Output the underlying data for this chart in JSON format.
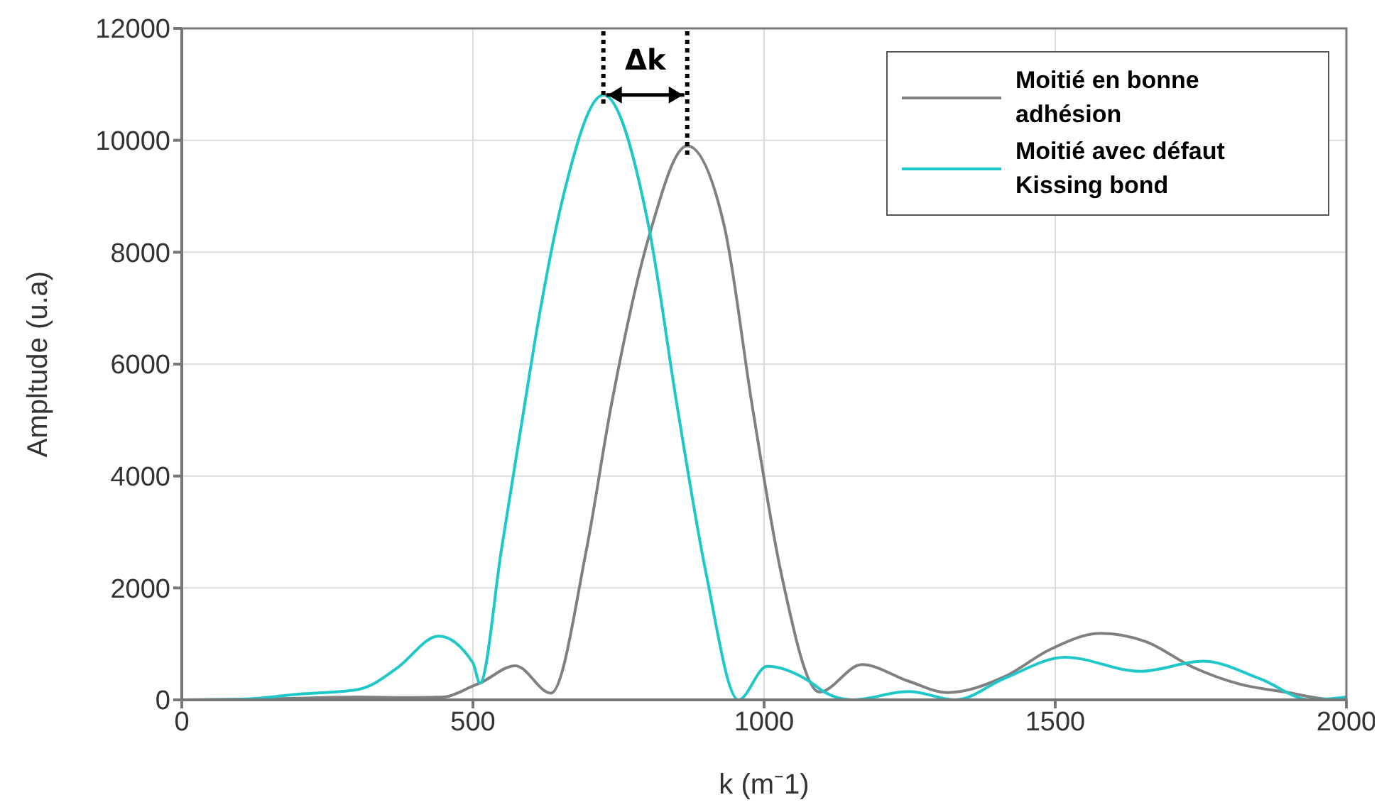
{
  "chart_data": {
    "type": "line",
    "xlabel": "k (m⁻1)",
    "ylabel": "Ampltude (u.a)",
    "xlim": [
      0,
      2000
    ],
    "xticks": [
      0,
      500,
      1000,
      1500,
      2000
    ],
    "ylim": [
      0,
      12000
    ],
    "yticks": [
      0,
      2000,
      4000,
      6000,
      8000,
      10000,
      12000
    ],
    "grid": true,
    "legend": "top right",
    "annotations": [
      "Δk"
    ],
    "series": [
      {
        "name": "Moitié en bonne adhésion",
        "color": "#808080",
        "x": [
          0,
          100,
          200,
          300,
          400,
          450,
          480,
          500,
          512,
          573,
          634,
          695,
          737,
          802,
          868,
          932,
          980,
          1029,
          1095,
          1168,
          1249,
          1315,
          1412,
          1493,
          1578,
          1656,
          1737,
          1817,
          1900,
          1960,
          2000
        ],
        "values": [
          0,
          10,
          30,
          50,
          40,
          50,
          150,
          250,
          300,
          610,
          120,
          2690,
          5230,
          8270,
          9900,
          8450,
          5230,
          2280,
          140,
          630,
          330,
          130,
          410,
          910,
          1190,
          1040,
          580,
          280,
          130,
          20,
          0
        ]
      },
      {
        "name": "Moitié avec défaut Kissing bond",
        "color": "#1fc8c8",
        "x": [
          0,
          100,
          200,
          300,
          322,
          371,
          441,
          500,
          512,
          549,
          583,
          615,
          656,
          724,
          802,
          851,
          900,
          956,
          1005,
          1078,
          1102,
          1151,
          1249,
          1329,
          1412,
          1517,
          1646,
          1754,
          1851,
          1939,
          2000
        ],
        "values": [
          0,
          10,
          100,
          180,
          250,
          580,
          1140,
          660,
          300,
          2690,
          4900,
          6930,
          9040,
          10810,
          8450,
          5230,
          2280,
          0,
          600,
          330,
          150,
          0,
          150,
          0,
          380,
          760,
          510,
          690,
          380,
          0,
          50
        ]
      }
    ]
  }
}
